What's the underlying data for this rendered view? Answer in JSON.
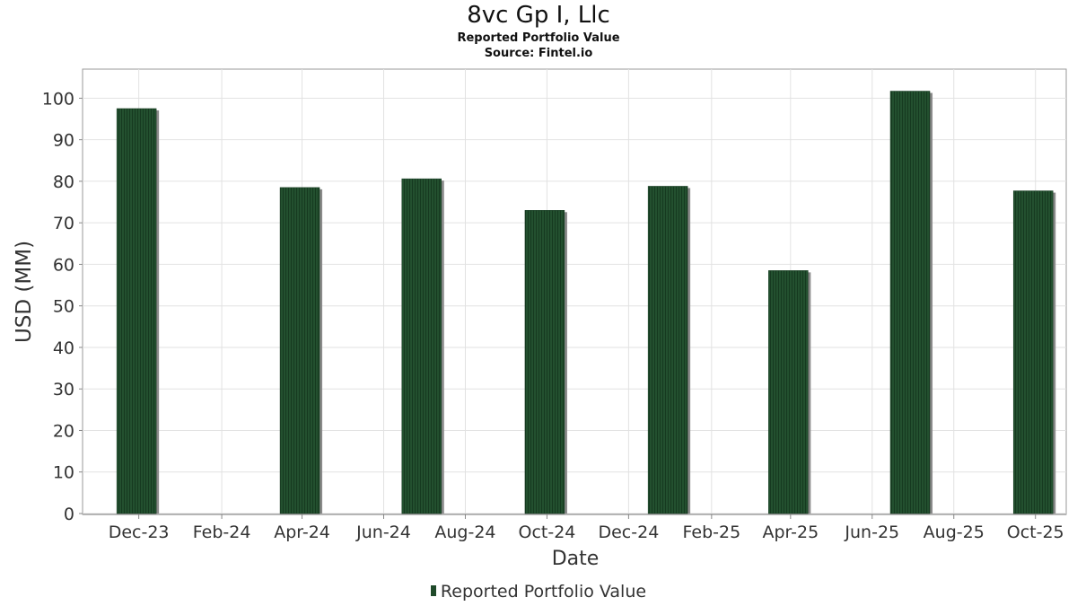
{
  "chart_data": {
    "type": "bar",
    "title": "8vc Gp I, Llc",
    "subtitle": "Reported Portfolio Value",
    "source": "Source: Fintel.io",
    "xlabel": "Date",
    "ylabel": "USD (MM)",
    "ylim": [
      0,
      107
    ],
    "yticks": [
      0,
      10,
      20,
      30,
      40,
      50,
      60,
      70,
      80,
      90,
      100
    ],
    "xlim": [
      "2023-10-20",
      "2025-10-24"
    ],
    "xticks": [
      {
        "label": "Dec-23",
        "date": "2023-12-01"
      },
      {
        "label": "Feb-24",
        "date": "2024-02-01"
      },
      {
        "label": "Apr-24",
        "date": "2024-04-01"
      },
      {
        "label": "Jun-24",
        "date": "2024-06-01"
      },
      {
        "label": "Aug-24",
        "date": "2024-08-01"
      },
      {
        "label": "Oct-24",
        "date": "2024-10-01"
      },
      {
        "label": "Dec-24",
        "date": "2024-12-01"
      },
      {
        "label": "Feb-25",
        "date": "2025-02-01"
      },
      {
        "label": "Apr-25",
        "date": "2025-04-01"
      },
      {
        "label": "Jun-25",
        "date": "2025-06-01"
      },
      {
        "label": "Aug-25",
        "date": "2025-08-01"
      },
      {
        "label": "Oct-25",
        "date": "2025-10-01"
      }
    ],
    "grid": true,
    "legend_position": "bottom",
    "series": [
      {
        "name": "Reported Portfolio Value",
        "color": "#1f4a2a",
        "points": [
          {
            "date": "2023-11-30",
            "value": 97.5
          },
          {
            "date": "2024-03-31",
            "value": 78.5
          },
          {
            "date": "2024-06-30",
            "value": 80.6
          },
          {
            "date": "2024-09-30",
            "value": 73.0
          },
          {
            "date": "2024-12-31",
            "value": 78.8
          },
          {
            "date": "2025-03-31",
            "value": 58.5
          },
          {
            "date": "2025-06-30",
            "value": 101.7
          },
          {
            "date": "2025-09-30",
            "value": 77.7
          }
        ]
      }
    ]
  }
}
